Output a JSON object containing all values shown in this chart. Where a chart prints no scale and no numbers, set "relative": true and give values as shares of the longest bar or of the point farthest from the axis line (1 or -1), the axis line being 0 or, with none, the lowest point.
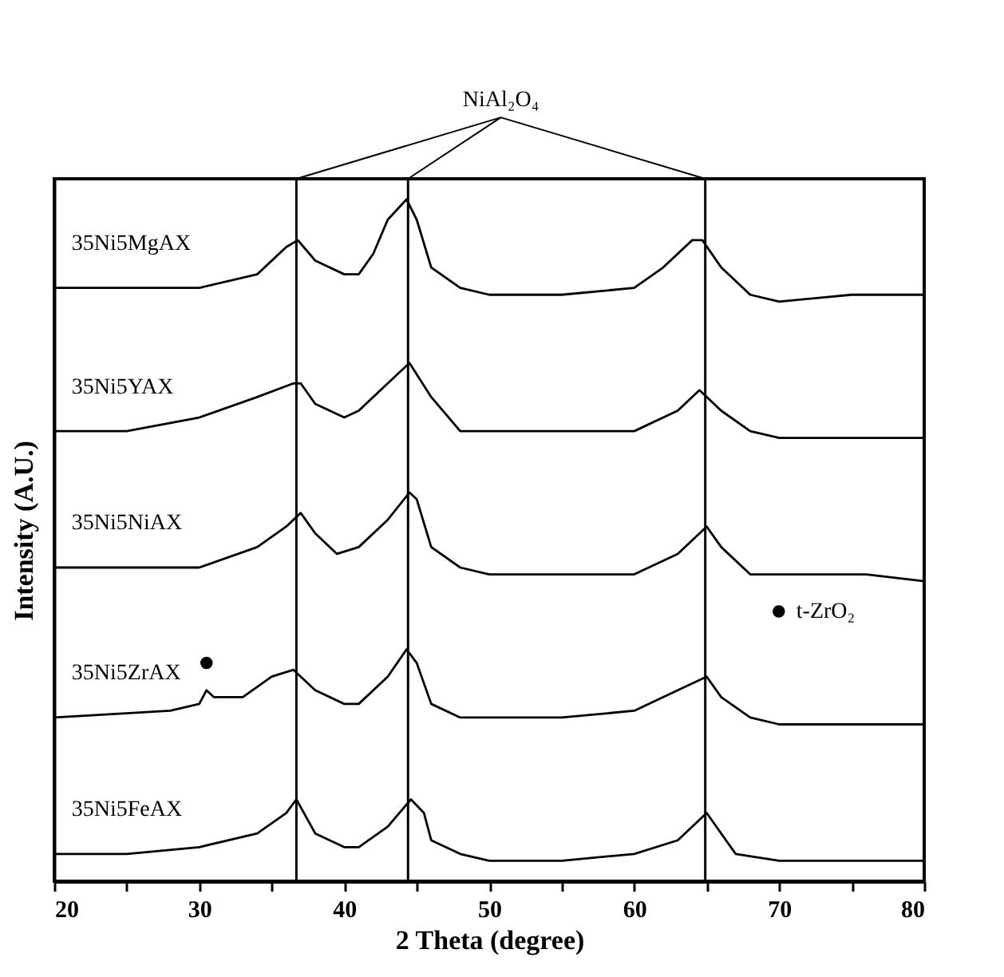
{
  "chart_data": {
    "type": "line",
    "relative": true,
    "xlabel": "2 Theta (degree)",
    "ylabel": "Intensity (A.U.)",
    "xlim": [
      20,
      80
    ],
    "xticks": [
      20,
      {
        "value": 25,
        "label": null
      },
      30,
      {
        "value": 35,
        "label": null
      },
      40,
      {
        "value": 45,
        "label": null
      },
      50,
      {
        "value": 55,
        "label": null
      },
      60,
      {
        "value": 65,
        "label": null
      },
      70,
      {
        "value": 75,
        "label": null
      },
      80
    ],
    "legend": "right",
    "grid": false,
    "marker": "none",
    "line_style": "solid",
    "series": [
      {
        "name": "35Ni5MgAX",
        "color": "#000000",
        "x": [
          20,
          30,
          34,
          36,
          36.8,
          38,
          40,
          41,
          42,
          43,
          44.3,
          45,
          46,
          48,
          50,
          55,
          60,
          62,
          64,
          64.7,
          66,
          68,
          70,
          75,
          80
        ],
        "values": [
          0.87,
          0.87,
          0.89,
          0.93,
          0.94,
          0.91,
          0.89,
          0.89,
          0.92,
          0.97,
          1.0,
          0.97,
          0.9,
          0.87,
          0.86,
          0.86,
          0.87,
          0.9,
          0.94,
          0.94,
          0.9,
          0.86,
          0.85,
          0.86,
          0.86
        ]
      },
      {
        "name": "35Ni5YAX",
        "color": "#000000",
        "x": [
          20,
          25,
          30,
          34,
          36.5,
          37,
          38,
          40,
          41,
          43,
          44.5,
          46,
          48,
          50,
          55,
          60,
          63,
          64.5,
          66,
          68,
          70,
          80
        ],
        "values": [
          0.66,
          0.66,
          0.68,
          0.71,
          0.73,
          0.73,
          0.7,
          0.68,
          0.69,
          0.73,
          0.76,
          0.71,
          0.66,
          0.66,
          0.66,
          0.66,
          0.69,
          0.72,
          0.69,
          0.66,
          0.65,
          0.65
        ]
      },
      {
        "name": "35Ni5NiAX",
        "color": "#000000",
        "x": [
          20,
          25,
          30,
          34,
          36,
          37,
          38,
          39.5,
          41,
          43,
          44.5,
          45,
          46,
          48,
          50,
          55,
          60,
          63,
          65,
          66,
          68,
          70,
          73,
          76,
          80
        ],
        "values": [
          0.46,
          0.46,
          0.46,
          0.49,
          0.52,
          0.54,
          0.51,
          0.48,
          0.49,
          0.53,
          0.57,
          0.56,
          0.49,
          0.46,
          0.45,
          0.45,
          0.45,
          0.48,
          0.52,
          0.49,
          0.45,
          0.45,
          0.45,
          0.45,
          0.44
        ]
      },
      {
        "name": "35Ni5ZrAX",
        "color": "#000000",
        "x": [
          20,
          28,
          30,
          30.5,
          31,
          33,
          35,
          36.5,
          38,
          40,
          41,
          43,
          44.3,
          45,
          46,
          48,
          50,
          55,
          60,
          63,
          65,
          66,
          68,
          70,
          80
        ],
        "values": [
          0.24,
          0.25,
          0.26,
          0.28,
          0.27,
          0.27,
          0.3,
          0.31,
          0.28,
          0.26,
          0.26,
          0.3,
          0.34,
          0.32,
          0.26,
          0.24,
          0.24,
          0.24,
          0.25,
          0.28,
          0.3,
          0.27,
          0.24,
          0.23,
          0.23
        ]
      },
      {
        "name": "35Ni5FeAX",
        "color": "#000000",
        "x": [
          20,
          25,
          30,
          34,
          36,
          36.7,
          38,
          40,
          41,
          43,
          44.6,
          45.5,
          46,
          48,
          50,
          55,
          60,
          63,
          65,
          66,
          67,
          70,
          76,
          80
        ],
        "values": [
          0.04,
          0.04,
          0.05,
          0.07,
          0.1,
          0.12,
          0.07,
          0.05,
          0.05,
          0.08,
          0.12,
          0.1,
          0.06,
          0.04,
          0.03,
          0.03,
          0.04,
          0.06,
          0.1,
          0.07,
          0.04,
          0.03,
          0.03,
          0.03
        ]
      },
      {
        "name": "t-ZrO₂",
        "type": "scatter",
        "marker": "circle",
        "color": "#000000",
        "x": [
          30.5
        ],
        "values": [
          0.32
        ]
      }
    ],
    "ref_lines": [
      {
        "axis": "x",
        "value": 36.7,
        "color": "#000000"
      },
      {
        "axis": "x",
        "value": 44.4,
        "color": "#000000"
      },
      {
        "axis": "x",
        "value": 64.9,
        "color": "#000000"
      }
    ],
    "annotations": [
      "NiAl₂O₄"
    ]
  }
}
